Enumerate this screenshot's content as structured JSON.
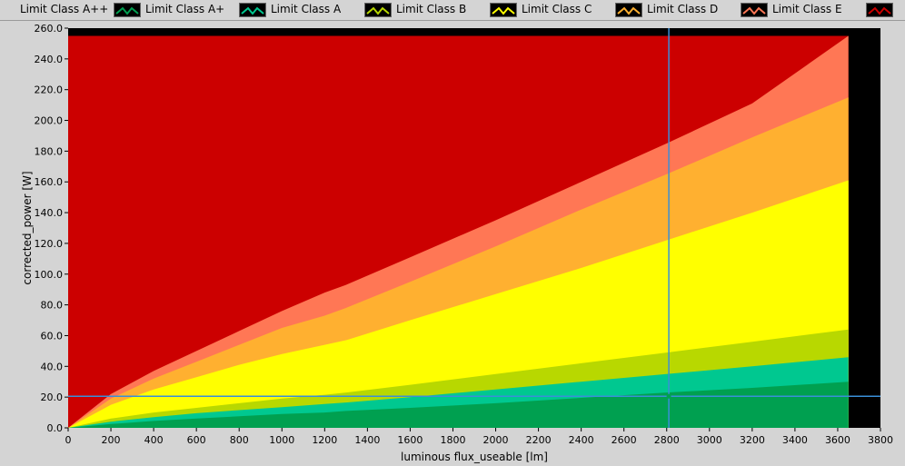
{
  "legend": [
    {
      "label": "Limit Class A++",
      "color": "#00a050"
    },
    {
      "label": "Limit Class A+",
      "color": "#00c890"
    },
    {
      "label": "Limit Class A",
      "color": "#b8d800"
    },
    {
      "label": "Limit Class B",
      "color": "#ffff00"
    },
    {
      "label": "Limit Class C",
      "color": "#ffb030"
    },
    {
      "label": "Limit Class D",
      "color": "#ff7755"
    },
    {
      "label": "Limit Class E",
      "color": "#cc0000"
    }
  ],
  "chart_data": {
    "type": "area",
    "xlabel": "luminous flux_useable [lm]",
    "ylabel": "corrected_power [W]",
    "xlim": [
      0,
      3800
    ],
    "ylim": [
      0,
      260
    ],
    "x_ticks": [
      "0",
      "200",
      "400",
      "600",
      "800",
      "1000",
      "1200",
      "1400",
      "1600",
      "1800",
      "2000",
      "2200",
      "2400",
      "2600",
      "2800",
      "3000",
      "3200",
      "3400",
      "3600",
      "3800"
    ],
    "y_ticks": [
      "0.0",
      "20.0",
      "40.0",
      "60.0",
      "80.0",
      "100.0",
      "120.0",
      "140.0",
      "160.0",
      "180.0",
      "200.0",
      "220.0",
      "240.0",
      "260.0"
    ],
    "x": [
      0,
      200,
      400,
      600,
      800,
      1000,
      1200,
      1300,
      1600,
      2000,
      2400,
      2800,
      3200,
      3650
    ],
    "series": [
      {
        "name": "Limit Class E",
        "color": "#cc0000",
        "values": [
          255,
          255,
          255,
          255,
          255,
          255,
          255,
          255,
          255,
          255,
          255,
          255,
          255,
          255
        ]
      },
      {
        "name": "Limit Class D",
        "color": "#ff7755",
        "values": [
          0,
          22,
          37,
          50,
          63,
          76,
          88,
          93,
          111,
          135,
          160,
          185,
          211,
          255
        ]
      },
      {
        "name": "Limit Class C",
        "color": "#ffb030",
        "values": [
          0,
          19,
          32,
          43,
          54,
          65,
          73,
          78,
          95,
          118,
          142,
          165,
          189,
          215
        ]
      },
      {
        "name": "Limit Class B",
        "color": "#ffff00",
        "values": [
          0,
          15,
          25,
          33,
          41,
          48,
          54,
          57,
          70,
          87,
          104,
          122,
          140,
          161
        ]
      },
      {
        "name": "Limit Class A",
        "color": "#b8d800",
        "values": [
          0,
          6,
          10,
          13,
          16,
          19,
          21.5,
          23,
          28,
          35,
          42,
          49,
          56,
          64
        ]
      },
      {
        "name": "Limit Class A+",
        "color": "#00c890",
        "values": [
          0,
          4,
          7,
          9.5,
          11.5,
          13.5,
          15.5,
          16.5,
          20,
          25,
          30,
          35,
          40,
          46
        ]
      },
      {
        "name": "Limit Class A++",
        "color": "#00a050",
        "values": [
          0,
          2.5,
          4.5,
          6,
          7.5,
          9,
          10,
          11,
          13,
          16,
          19.5,
          23,
          26,
          30
        ]
      }
    ],
    "cursor": {
      "x": 2810,
      "y": 20.5
    },
    "plot_bg": "#000000",
    "cursor_color": "#3a8fd8"
  }
}
